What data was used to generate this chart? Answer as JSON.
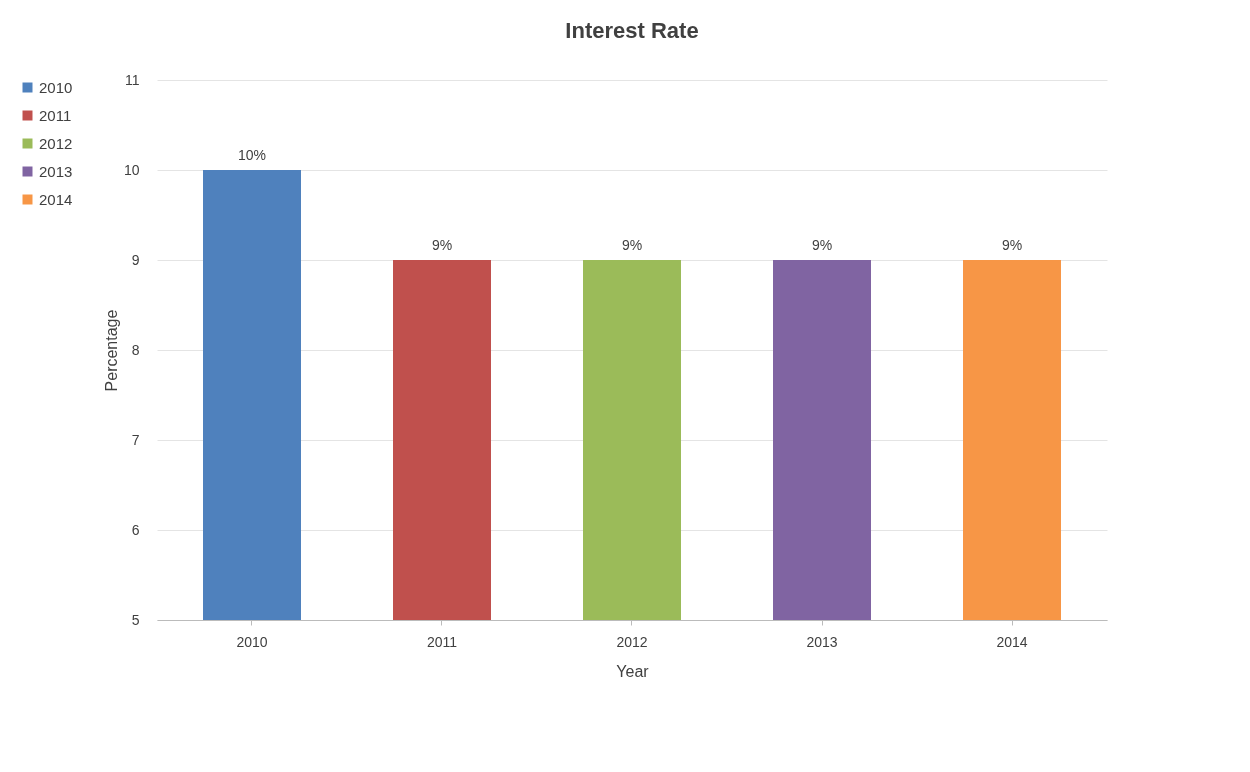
{
  "chart_data": {
    "type": "bar",
    "title": "Interest Rate",
    "xlabel": "Year",
    "ylabel": "Percentage",
    "categories": [
      "2010",
      "2011",
      "2012",
      "2013",
      "2014"
    ],
    "series": [
      {
        "name": "2010",
        "color": "#4f81bd",
        "values": [
          10,
          null,
          null,
          null,
          null
        ],
        "value_labels": [
          "10%",
          null,
          null,
          null,
          null
        ]
      },
      {
        "name": "2011",
        "color": "#c0504d",
        "values": [
          null,
          9,
          null,
          null,
          null
        ],
        "value_labels": [
          null,
          "9%",
          null,
          null,
          null
        ]
      },
      {
        "name": "2012",
        "color": "#9bbb59",
        "values": [
          null,
          null,
          9,
          null,
          null
        ],
        "value_labels": [
          null,
          null,
          "9%",
          null,
          null
        ]
      },
      {
        "name": "2013",
        "color": "#8064a2",
        "values": [
          null,
          null,
          null,
          9,
          null
        ],
        "value_labels": [
          null,
          null,
          null,
          "9%",
          null
        ]
      },
      {
        "name": "2014",
        "color": "#f79646",
        "values": [
          null,
          null,
          null,
          null,
          9
        ],
        "value_labels": [
          null,
          null,
          null,
          null,
          "9%"
        ]
      }
    ],
    "ylim": [
      5,
      11
    ],
    "yticks": [
      5,
      6,
      7,
      8,
      9,
      10,
      11
    ],
    "grid": "y",
    "legend": "left"
  }
}
